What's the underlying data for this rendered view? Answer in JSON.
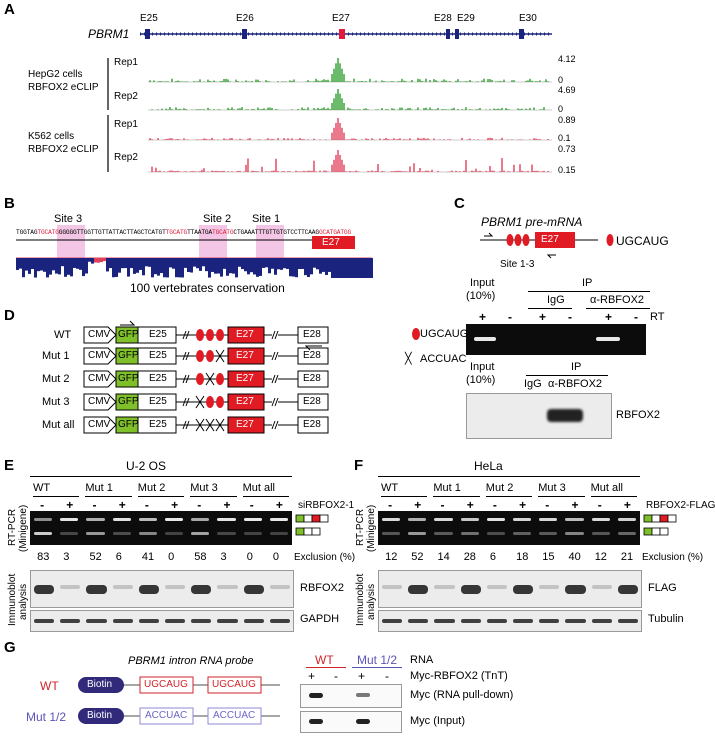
{
  "panels": {
    "a": "A",
    "b": "B",
    "c": "C",
    "d": "D",
    "e": "E",
    "f": "F",
    "g": "G"
  },
  "a": {
    "gene": "PBRM1",
    "exons": [
      "E25",
      "E26",
      "E27",
      "E28",
      "E29",
      "E30"
    ],
    "group1_line1": "HepG2 cells",
    "group1_line2": "RBFOX2 eCLIP",
    "group2_line1": "K562 cells",
    "group2_line2": "RBFOX2 eCLIP",
    "rep1": "Rep1",
    "rep2": "Rep2",
    "scales": [
      "4.12",
      "0",
      "4.69",
      "0",
      "0.89",
      "0.1",
      "0.73",
      "0.15"
    ],
    "green": "#2e9c2e",
    "red": "#e0405a"
  },
  "b": {
    "site3": "Site 3",
    "site2": "Site 2",
    "site1": "Site 1",
    "seq1": "TGGTAG",
    "motif3": "TGCATG",
    "seq2": "GGGGGTTGGTTGTTATTACTTAGCTCATGT",
    "motif2": "TGCATG",
    "seq3": "TTAATGA",
    "motif1": "TGCATG",
    "seq4": "CTGAAATTTGTTGTGTCCTTCAAG",
    "seq5": "GCATGATGG",
    "exon": "E27",
    "conservation": "100 vertebrates conservation"
  },
  "c": {
    "pre_mrna": "PBRM1 pre-mRNA",
    "exon": "E27",
    "legend": "UGCAUG",
    "sites": "Site 1-3",
    "input1": "Input",
    "input2": "(10%)",
    "ip": "IP",
    "igg": "IgG",
    "ab": "α-RBFOX2",
    "plus": "+",
    "minus": "-",
    "rt": "RT",
    "blot_label": "RBFOX2"
  },
  "d": {
    "rows": [
      "WT",
      "Mut 1",
      "Mut 2",
      "Mut 3",
      "Mut all"
    ],
    "cmv": "CMV",
    "gfp": "GFP",
    "e25": "E25",
    "e27": "E27",
    "e28": "E28",
    "legend1": "UGCAUG",
    "legend2": "ACCUAC"
  },
  "e": {
    "cell": "U-2 OS",
    "groups": [
      "WT",
      "Mut 1",
      "Mut 2",
      "Mut 3",
      "Mut all"
    ],
    "signs": [
      "-",
      "+",
      "-",
      "+",
      "-",
      "+",
      "-",
      "+",
      "-",
      "+"
    ],
    "treatment": "siRBFOX2-1",
    "exclusion": [
      "83",
      "3",
      "52",
      "6",
      "41",
      "0",
      "58",
      "3",
      "0",
      "0"
    ],
    "exclusion_label": "Exclusion (%)",
    "rtpcr1": "RT-PCR",
    "rtpcr2": "(Minigene)",
    "ib1": "Immunoblot",
    "ib2": "analysis",
    "blot1": "RBFOX2",
    "blot2": "GAPDH"
  },
  "f": {
    "cell": "HeLa",
    "groups": [
      "WT",
      "Mut 1",
      "Mut 2",
      "Mut 3",
      "Mut all"
    ],
    "signs": [
      "-",
      "+",
      "-",
      "+",
      "-",
      "+",
      "-",
      "+",
      "-",
      "+"
    ],
    "treatment": "RBFOX2-FLAG",
    "exclusion": [
      "12",
      "52",
      "14",
      "28",
      "6",
      "18",
      "15",
      "40",
      "12",
      "21"
    ],
    "exclusion_label": "Exclusion (%)",
    "rtpcr1": "RT-PCR",
    "rtpcr2": "(Minigene)",
    "ib1": "Immunoblot",
    "ib2": "analysis",
    "blot1": "FLAG",
    "blot2": "Tubulin"
  },
  "g": {
    "probe": "PBRM1 intron RNA probe",
    "probe_gene": "PBRM1",
    "probe_rest": " intron RNA probe",
    "wt": "WT",
    "mut": "Mut 1/2",
    "biotin": "Biotin",
    "wt_motif": "UGCAUG",
    "mut_motif": "ACCUAC",
    "rna": "RNA",
    "myc": "Myc-RBFOX2 (TnT)",
    "lab1": "Myc (RNA pull-down)",
    "lab2": "Myc (Input)",
    "plus": "+",
    "minus": "-",
    "wt_color": "#d0242b",
    "mut_color": "#5a55b8"
  }
}
